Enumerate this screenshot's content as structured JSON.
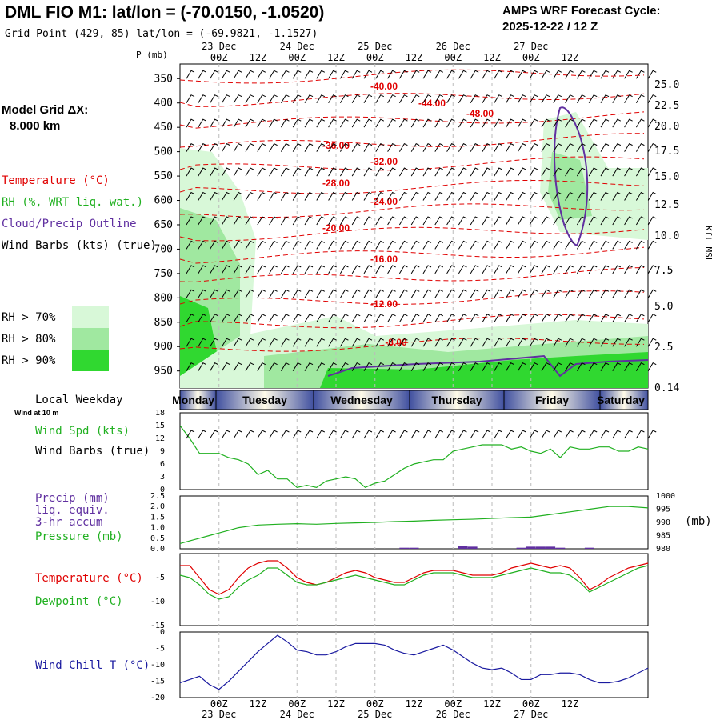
{
  "header": {
    "title": "DML FIO M1:  lat/lon = (-70.0150, -1.0520)",
    "subtitle": "Grid Point (429, 85) lat/lon = (-69.9821, -1.1527)",
    "cycle_label": "AMPS WRF Forecast Cycle:",
    "cycle_value": "2025-12-22 / 12  Z",
    "grid_label": "Model Grid ΔX:",
    "grid_value": "8.000 km"
  },
  "time_axis": {
    "ticks": [
      "00Z",
      "12Z",
      "00Z",
      "12Z",
      "00Z",
      "12Z",
      "00Z",
      "12Z",
      "00Z",
      "12Z"
    ],
    "dates": [
      "23 Dec",
      "24 Dec",
      "25 Dec",
      "26 Dec",
      "27 Dec"
    ]
  },
  "left_legend": {
    "temperature": "Temperature (°C)",
    "rh": "RH (%, WRT liq. wat.)",
    "cloud": "Cloud/Precip Outline",
    "wind": "Wind Barbs (kts) (true)",
    "rh70": "RH > 70%",
    "rh80": "RH > 80%",
    "rh90": "RH > 90%",
    "rh_colors": [
      "#d8f8d8",
      "#a0e8a0",
      "#30d830"
    ],
    "temp_color": "#e00000",
    "cloud_color": "#6030a0"
  },
  "weekday_bar": {
    "label": "Local Weekday",
    "days": [
      "Monday",
      "Tuesday",
      "Wednesday",
      "Thursday",
      "Friday",
      "Saturday"
    ],
    "wind_note": "Wind at 10 m"
  },
  "chart_data": [
    {
      "type": "contour",
      "name": "cross-section",
      "ylabel": "P (mb)",
      "yticks": [
        "350",
        "400",
        "450",
        "500",
        "550",
        "600",
        "650",
        "700",
        "750",
        "800",
        "850",
        "900",
        "950"
      ],
      "ylabel_right": "Kft MSL",
      "right_ticks": [
        "25.0",
        "22.5",
        "20.0",
        "17.5",
        "15.0",
        "12.5",
        "10.0",
        "7.5",
        "5.0",
        "2.5",
        "0.14"
      ],
      "temp_labels": [
        "-40.00",
        "-44.00",
        "-48.00",
        "-36.00",
        "-32.00",
        "-28.00",
        "-24.00",
        "-20.00",
        "-16.00",
        "-12.00",
        "-8.00"
      ]
    },
    {
      "type": "line",
      "name": "wind",
      "title": "Wind Spd (kts)",
      "title2": "Wind Barbs (true)",
      "yticks": [
        "0",
        "3",
        "6",
        "9",
        "12",
        "15",
        "18"
      ],
      "ylim": [
        0,
        18
      ],
      "x_hours": [
        0,
        3,
        6,
        9,
        12,
        15,
        18,
        21,
        24,
        27,
        30,
        33,
        36,
        39,
        42,
        45,
        48,
        51,
        54,
        57,
        60,
        63,
        66,
        69,
        72,
        75,
        78,
        81,
        84,
        87,
        90,
        93,
        96,
        99,
        102,
        105,
        108,
        111,
        114,
        117,
        120,
        123,
        126,
        129,
        132,
        135,
        138,
        141,
        144
      ],
      "values": [
        15,
        12,
        8.5,
        8.5,
        8.5,
        7.5,
        7,
        6,
        3.5,
        4.5,
        2.5,
        2.5,
        0.5,
        1,
        0.5,
        2,
        2.5,
        3,
        2.5,
        0.5,
        1.5,
        2,
        3.5,
        5,
        6,
        6.5,
        7,
        7,
        9,
        9.5,
        10,
        10.5,
        10.5,
        10.5,
        9.5,
        10,
        9,
        8.5,
        9.5,
        7.5,
        10,
        9.5,
        9.5,
        10,
        10,
        9,
        9,
        10,
        9.5
      ]
    },
    {
      "type": "bar+line",
      "name": "precip-pressure",
      "title": "Precip (mm)",
      "title2": "liq. equiv.",
      "title3": "3-hr accum",
      "title4": "Pressure (mb)",
      "yticks": [
        "0.0",
        "0.5",
        "1.0",
        "1.5",
        "2.0",
        "2.5"
      ],
      "right_ticks": [
        "980",
        "985",
        "990",
        "995",
        "1000"
      ],
      "right_label": "(mb)",
      "ylim": [
        0,
        2.5
      ],
      "ylim_right": [
        980,
        1000
      ],
      "precip_hours": [
        69,
        72,
        87,
        90,
        105,
        108,
        111,
        114,
        117,
        126
      ],
      "precip_values": [
        0.05,
        0.05,
        0.15,
        0.1,
        0.05,
        0.1,
        0.1,
        0.1,
        0.05,
        0.05
      ],
      "pressure_hours": [
        0,
        3,
        6,
        9,
        12,
        15,
        18,
        21,
        24,
        30,
        36,
        42,
        48,
        54,
        60,
        66,
        72,
        78,
        84,
        90,
        96,
        102,
        108,
        114,
        120,
        126,
        132,
        138,
        144
      ],
      "pressure": [
        982,
        983,
        984,
        985,
        986,
        987,
        988,
        988.5,
        989,
        989.3,
        989.5,
        989.3,
        989.6,
        989.8,
        990,
        990.3,
        990.5,
        990.8,
        991,
        991.2,
        991.5,
        991.8,
        992,
        993,
        994,
        995,
        996,
        996,
        995.5
      ]
    },
    {
      "type": "line",
      "name": "temp-dewpoint",
      "series_labels": [
        "Temperature (°C)",
        "Dewpoint (°C)"
      ],
      "yticks": [
        "-15",
        "-10",
        "-5"
      ],
      "ylim": [
        -15,
        0
      ],
      "x_hours": [
        0,
        3,
        6,
        9,
        12,
        15,
        18,
        21,
        24,
        27,
        30,
        33,
        36,
        39,
        42,
        45,
        48,
        51,
        54,
        57,
        60,
        63,
        66,
        69,
        72,
        75,
        78,
        81,
        84,
        87,
        90,
        93,
        96,
        99,
        102,
        105,
        108,
        111,
        114,
        117,
        120,
        123,
        126,
        129,
        132,
        135,
        138,
        141,
        144
      ],
      "temperature": [
        -2.5,
        -2.5,
        -5,
        -7.5,
        -8.5,
        -7.5,
        -5,
        -3,
        -2,
        -1.5,
        -1.5,
        -3,
        -5,
        -6,
        -6.5,
        -6,
        -5,
        -4,
        -3.5,
        -4,
        -5,
        -5.5,
        -6,
        -6,
        -5,
        -4,
        -3.5,
        -3.5,
        -3.5,
        -4,
        -4.5,
        -4.5,
        -4.5,
        -4,
        -3,
        -2.5,
        -2,
        -2.5,
        -3,
        -2.5,
        -3,
        -5,
        -7.5,
        -6.5,
        -5,
        -4,
        -3,
        -2.5,
        -2
      ],
      "dewpoint": [
        -4.5,
        -5,
        -6.5,
        -8.5,
        -9.5,
        -9,
        -7,
        -5.5,
        -4.5,
        -3,
        -3,
        -4.5,
        -6,
        -6.5,
        -6.5,
        -6,
        -5.5,
        -5,
        -4.5,
        -5,
        -5.5,
        -6,
        -6.5,
        -6.5,
        -5.5,
        -4.5,
        -4,
        -4,
        -4,
        -4.5,
        -5,
        -5,
        -5,
        -4.5,
        -4,
        -3.5,
        -3,
        -3.5,
        -4,
        -4,
        -4.5,
        -6,
        -8,
        -7,
        -6,
        -5,
        -4,
        -3,
        -2.5
      ]
    },
    {
      "type": "line",
      "name": "wind-chill",
      "series_labels": [
        "Wind Chill T (°C)"
      ],
      "yticks": [
        "-20",
        "-15",
        "-10",
        "-5",
        "0"
      ],
      "ylim": [
        -20,
        0
      ],
      "x_hours": [
        0,
        3,
        6,
        9,
        12,
        15,
        18,
        21,
        24,
        27,
        30,
        33,
        36,
        39,
        42,
        45,
        48,
        51,
        54,
        57,
        60,
        63,
        66,
        69,
        72,
        75,
        78,
        81,
        84,
        87,
        90,
        93,
        96,
        99,
        102,
        105,
        108,
        111,
        114,
        117,
        120,
        123,
        126,
        129,
        132,
        135,
        138,
        141,
        144
      ],
      "values": [
        -15.5,
        -14.5,
        -13.5,
        -16,
        -17.5,
        -15,
        -12,
        -9,
        -6,
        -3.5,
        -1,
        -3,
        -5.5,
        -6,
        -7,
        -7,
        -6,
        -4.5,
        -3.5,
        -3.5,
        -3.5,
        -4,
        -5.5,
        -6.5,
        -7,
        -6,
        -5,
        -4,
        -5.5,
        -7.5,
        -9.5,
        -11,
        -11.5,
        -11,
        -12.5,
        -14.5,
        -14.5,
        -13,
        -13,
        -12.5,
        -12.5,
        -13,
        -14.5,
        -15.5,
        -15.5,
        -15,
        -14,
        -12.5,
        -11
      ]
    }
  ]
}
